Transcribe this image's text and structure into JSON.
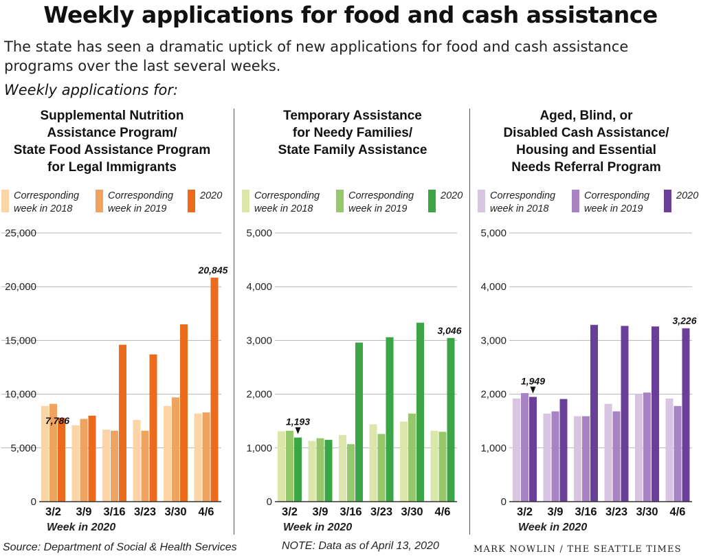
{
  "header": {
    "title": "Weekly applications for food and cash assistance",
    "subtitle": "The state has seen a dramatic uptick of new applications for food and cash assistance programs over the last several weeks.",
    "lead": "Weekly applications for:"
  },
  "footer": {
    "source": "Source: Department of Social & Health Services",
    "note": "NOTE: Data as of April 13, 2020",
    "credit": "MARK NOWLIN / THE SEATTLE TIMES"
  },
  "chart_data": [
    {
      "type": "bar",
      "title": "Supplemental Nutrition Assistance Program/ State Food Assistance Program for Legal Immigrants",
      "title_lines": [
        "Supplemental Nutrition",
        "Assistance Program/",
        "State Food Assistance Program",
        "for Legal Immigrants"
      ],
      "xlabel": "Week in 2020",
      "ylabel": "",
      "ylim": [
        0,
        25000
      ],
      "yticks": [
        0,
        5000,
        10000,
        15000,
        20000,
        25000
      ],
      "ytick_labels": [
        "0",
        "5,000",
        "10,000",
        "15,000",
        "20,000",
        "25,000"
      ],
      "grid": true,
      "legend_position": "top",
      "categories": [
        "3/2",
        "3/9",
        "3/16",
        "3/23",
        "3/30",
        "4/6"
      ],
      "colors": [
        "#fdd4a5",
        "#f0a35f",
        "#ec6a1c"
      ],
      "series": [
        {
          "name": "Corresponding week in 2018",
          "legend_lines": [
            "Corresponding",
            "week in 2018"
          ],
          "values": [
            8900,
            7100,
            6700,
            7600,
            8900,
            8200
          ]
        },
        {
          "name": "Corresponding week in 2019",
          "legend_lines": [
            "Corresponding",
            "week in 2019"
          ],
          "values": [
            9100,
            7700,
            6600,
            6600,
            9700,
            8300
          ]
        },
        {
          "name": "2020",
          "legend_lines": [
            "2020"
          ],
          "values": [
            7786,
            8000,
            14600,
            13700,
            16500,
            20845
          ]
        }
      ],
      "annotations": [
        {
          "category": "3/2",
          "label": "7,786",
          "arrow": false,
          "placement": "inside-left"
        },
        {
          "category": "4/6",
          "label": "20,845",
          "arrow": false,
          "placement": "above"
        }
      ]
    },
    {
      "type": "bar",
      "title": "Temporary Assistance for Needy Families/ State Family Assistance",
      "title_lines": [
        "Temporary Assistance",
        "for Needy Families/",
        "State Family Assistance"
      ],
      "xlabel": "Week in 2020",
      "ylabel": "",
      "ylim": [
        0,
        5000
      ],
      "yticks": [
        0,
        1000,
        2000,
        3000,
        4000,
        5000
      ],
      "ytick_labels": [
        "0",
        "1,000",
        "2,000",
        "3,000",
        "4,000",
        "5,000"
      ],
      "grid": true,
      "legend_position": "top",
      "categories": [
        "3/2",
        "3/9",
        "3/16",
        "3/23",
        "3/30",
        "4/6"
      ],
      "colors": [
        "#dbe6aa",
        "#97c76b",
        "#3aa646"
      ],
      "series": [
        {
          "name": "Corresponding week in 2018",
          "legend_lines": [
            "Corresponding",
            "week in 2018"
          ],
          "values": [
            1310,
            1130,
            1240,
            1440,
            1490,
            1320
          ]
        },
        {
          "name": "Corresponding week in 2019",
          "legend_lines": [
            "Corresponding",
            "week in 2019"
          ],
          "values": [
            1320,
            1180,
            1070,
            1260,
            1640,
            1300
          ]
        },
        {
          "name": "2020",
          "legend_lines": [
            "2020"
          ],
          "values": [
            1193,
            1150,
            2960,
            3060,
            3330,
            3046
          ]
        }
      ],
      "annotations": [
        {
          "category": "3/2",
          "label": "1,193",
          "arrow": true,
          "placement": "above"
        },
        {
          "category": "4/6",
          "label": "3,046",
          "arrow": false,
          "placement": "above"
        }
      ]
    },
    {
      "type": "bar",
      "title": "Aged, Blind, or Disabled Cash Assistance/ Housing and Essential Needs Referral Program",
      "title_lines": [
        "Aged, Blind, or",
        "Disabled Cash Assistance/",
        "Housing and Essential",
        "Needs Referral Program"
      ],
      "xlabel": "Week in 2020",
      "ylabel": "",
      "ylim": [
        0,
        5000
      ],
      "yticks": [
        0,
        1000,
        2000,
        3000,
        4000,
        5000
      ],
      "ytick_labels": [
        "0",
        "1,000",
        "2,000",
        "3,000",
        "4,000",
        "5,000"
      ],
      "grid": true,
      "legend_position": "top",
      "categories": [
        "3/2",
        "3/9",
        "3/16",
        "3/23",
        "3/30",
        "4/6"
      ],
      "colors": [
        "#d8c5e2",
        "#a883c4",
        "#6a3f99"
      ],
      "series": [
        {
          "name": "Corresponding week in 2018",
          "legend_lines": [
            "Corresponding",
            "week in 2018"
          ],
          "values": [
            1920,
            1640,
            1590,
            1820,
            2000,
            1920
          ]
        },
        {
          "name": "Corresponding week in 2019",
          "legend_lines": [
            "Corresponding",
            "week in 2019"
          ],
          "values": [
            2020,
            1680,
            1590,
            1680,
            2030,
            1780
          ]
        },
        {
          "name": "2020",
          "legend_lines": [
            "2020"
          ],
          "values": [
            1949,
            1910,
            3290,
            3270,
            3260,
            3226
          ]
        }
      ],
      "annotations": [
        {
          "category": "3/2",
          "label": "1,949",
          "arrow": true,
          "placement": "above"
        },
        {
          "category": "4/6",
          "label": "3,226",
          "arrow": false,
          "placement": "above"
        }
      ]
    }
  ]
}
